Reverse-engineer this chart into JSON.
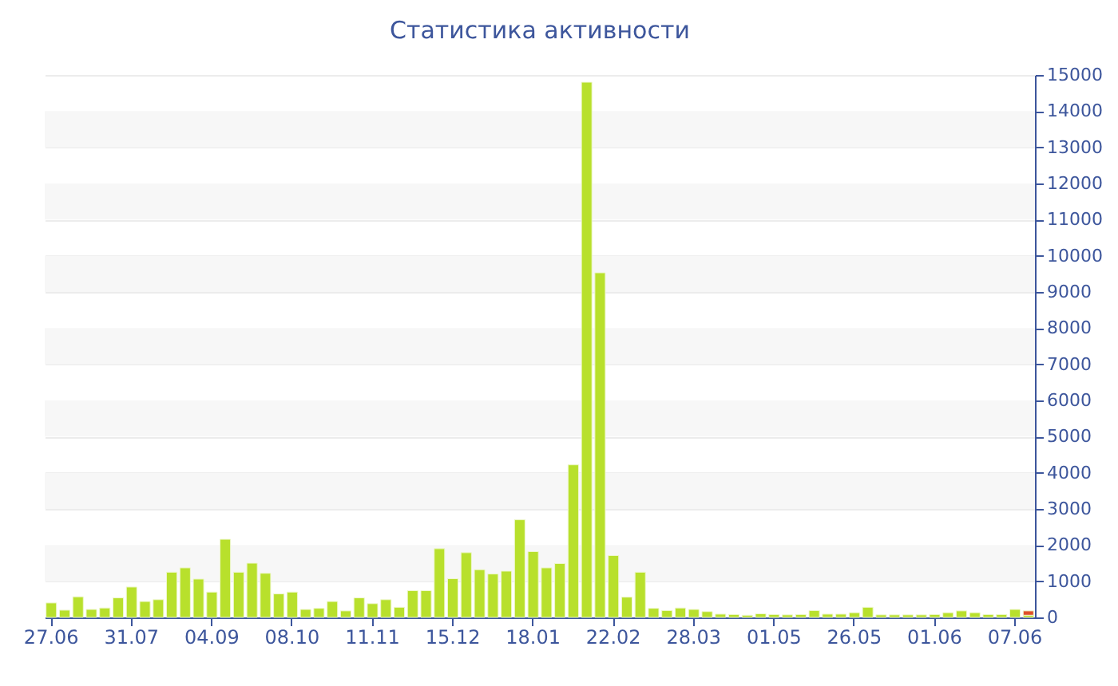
{
  "chart_data": {
    "type": "bar",
    "title": "Статистика активности",
    "stacked": true,
    "categories": [
      "27.06",
      null,
      null,
      null,
      null,
      null,
      "31.07",
      null,
      null,
      null,
      null,
      null,
      "04.09",
      null,
      null,
      null,
      null,
      null,
      "08.10",
      null,
      null,
      null,
      null,
      null,
      "11.11",
      null,
      null,
      null,
      null,
      null,
      "15.12",
      null,
      null,
      null,
      null,
      null,
      "18.01",
      null,
      null,
      null,
      null,
      null,
      "22.02",
      null,
      null,
      null,
      null,
      null,
      "28.03",
      null,
      null,
      null,
      null,
      null,
      "01.05",
      null,
      null,
      null,
      null,
      null,
      "26.05",
      null,
      null,
      null,
      null,
      null,
      "01.06",
      null,
      null,
      null,
      null,
      null,
      "07.06",
      null
    ],
    "series": [
      {
        "color": "#b8e02c",
        "values": [
          400,
          200,
          570,
          220,
          260,
          540,
          840,
          440,
          490,
          1250,
          1370,
          1060,
          700,
          2160,
          1250,
          1500,
          1220,
          650,
          700,
          220,
          250,
          440,
          180,
          540,
          380,
          490,
          280,
          740,
          740,
          1900,
          1070,
          1790,
          1320,
          1200,
          1280,
          2700,
          1820,
          1370,
          1490,
          4220,
          14800,
          9530,
          1710,
          560,
          1250,
          250,
          190,
          260,
          220,
          160,
          90,
          80,
          60,
          100,
          80,
          70,
          80,
          190,
          90,
          90,
          130,
          280,
          70,
          70,
          70,
          70,
          80,
          130,
          180,
          130,
          80,
          80,
          220,
          60
        ]
      },
      {
        "color": "#e0502a",
        "values": [
          null,
          null,
          null,
          null,
          null,
          null,
          null,
          null,
          null,
          null,
          null,
          null,
          null,
          null,
          null,
          null,
          null,
          null,
          null,
          null,
          null,
          null,
          null,
          null,
          null,
          null,
          null,
          null,
          null,
          null,
          null,
          null,
          null,
          null,
          null,
          null,
          null,
          null,
          null,
          null,
          null,
          null,
          null,
          null,
          null,
          null,
          null,
          null,
          null,
          null,
          null,
          null,
          null,
          null,
          null,
          null,
          null,
          null,
          null,
          null,
          null,
          null,
          null,
          null,
          null,
          null,
          null,
          null,
          null,
          null,
          null,
          null,
          null,
          120
        ]
      }
    ],
    "ylim": [
      0,
      15000
    ],
    "yticks": [
      0,
      1000,
      2000,
      3000,
      4000,
      5000,
      6000,
      7000,
      8000,
      9000,
      10000,
      11000,
      12000,
      13000,
      14000,
      15000
    ],
    "grid": "y"
  }
}
